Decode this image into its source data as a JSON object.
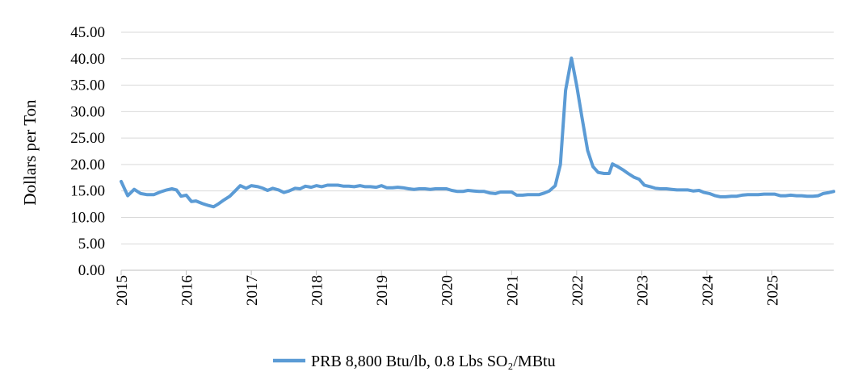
{
  "chart_data": {
    "type": "line",
    "title": "",
    "xlabel": "",
    "ylabel": "Dollars per Ton",
    "ylim": [
      0,
      45
    ],
    "yticks": [
      "0.00",
      "5.00",
      "10.00",
      "15.00",
      "20.00",
      "25.00",
      "30.00",
      "35.00",
      "40.00",
      "45.00"
    ],
    "xticks": [
      "2015",
      "2016",
      "2017",
      "2018",
      "2019",
      "2020",
      "2021",
      "2022",
      "2023",
      "2024",
      "2025"
    ],
    "xlim": [
      2015.0,
      2025.95
    ],
    "grid": true,
    "legend": "bottom-center",
    "color": "#5b9bd5",
    "series": [
      {
        "name": "PRB 8,800 Btu/lb, 0.8 Lbs SO₂/MBtu",
        "points": [
          [
            2015.0,
            16.8
          ],
          [
            2015.1,
            14.1
          ],
          [
            2015.2,
            15.3
          ],
          [
            2015.3,
            14.5
          ],
          [
            2015.4,
            14.3
          ],
          [
            2015.5,
            14.3
          ],
          [
            2015.6,
            14.8
          ],
          [
            2015.7,
            15.2
          ],
          [
            2015.78,
            15.4
          ],
          [
            2015.85,
            15.2
          ],
          [
            2015.92,
            14.0
          ],
          [
            2016.0,
            14.2
          ],
          [
            2016.08,
            13.0
          ],
          [
            2016.15,
            13.1
          ],
          [
            2016.25,
            12.6
          ],
          [
            2016.33,
            12.3
          ],
          [
            2016.42,
            12.0
          ],
          [
            2016.5,
            12.6
          ],
          [
            2016.58,
            13.3
          ],
          [
            2016.67,
            14.0
          ],
          [
            2016.75,
            15.0
          ],
          [
            2016.83,
            16.0
          ],
          [
            2016.92,
            15.5
          ],
          [
            2017.0,
            16.0
          ],
          [
            2017.1,
            15.8
          ],
          [
            2017.18,
            15.5
          ],
          [
            2017.25,
            15.1
          ],
          [
            2017.33,
            15.5
          ],
          [
            2017.42,
            15.2
          ],
          [
            2017.5,
            14.7
          ],
          [
            2017.58,
            15.0
          ],
          [
            2017.67,
            15.5
          ],
          [
            2017.75,
            15.4
          ],
          [
            2017.83,
            15.9
          ],
          [
            2017.92,
            15.7
          ],
          [
            2018.0,
            16.0
          ],
          [
            2018.08,
            15.8
          ],
          [
            2018.17,
            16.1
          ],
          [
            2018.25,
            16.1
          ],
          [
            2018.33,
            16.1
          ],
          [
            2018.42,
            15.9
          ],
          [
            2018.5,
            15.9
          ],
          [
            2018.58,
            15.8
          ],
          [
            2018.67,
            16.0
          ],
          [
            2018.75,
            15.8
          ],
          [
            2018.83,
            15.8
          ],
          [
            2018.92,
            15.7
          ],
          [
            2019.0,
            16.0
          ],
          [
            2019.08,
            15.6
          ],
          [
            2019.17,
            15.6
          ],
          [
            2019.25,
            15.7
          ],
          [
            2019.33,
            15.6
          ],
          [
            2019.42,
            15.4
          ],
          [
            2019.5,
            15.3
          ],
          [
            2019.58,
            15.4
          ],
          [
            2019.67,
            15.4
          ],
          [
            2019.75,
            15.3
          ],
          [
            2019.83,
            15.4
          ],
          [
            2019.92,
            15.4
          ],
          [
            2020.0,
            15.4
          ],
          [
            2020.08,
            15.1
          ],
          [
            2020.17,
            14.9
          ],
          [
            2020.25,
            14.9
          ],
          [
            2020.33,
            15.1
          ],
          [
            2020.42,
            15.0
          ],
          [
            2020.5,
            14.9
          ],
          [
            2020.58,
            14.9
          ],
          [
            2020.67,
            14.6
          ],
          [
            2020.75,
            14.5
          ],
          [
            2020.83,
            14.8
          ],
          [
            2020.92,
            14.8
          ],
          [
            2021.0,
            14.8
          ],
          [
            2021.08,
            14.2
          ],
          [
            2021.17,
            14.2
          ],
          [
            2021.25,
            14.3
          ],
          [
            2021.33,
            14.3
          ],
          [
            2021.42,
            14.3
          ],
          [
            2021.5,
            14.6
          ],
          [
            2021.58,
            15.0
          ],
          [
            2021.67,
            16.0
          ],
          [
            2021.75,
            20.0
          ],
          [
            2021.83,
            34.0
          ],
          [
            2021.92,
            40.1
          ],
          [
            2022.0,
            35.0
          ],
          [
            2022.08,
            29.0
          ],
          [
            2022.17,
            22.6
          ],
          [
            2022.25,
            19.6
          ],
          [
            2022.33,
            18.5
          ],
          [
            2022.42,
            18.3
          ],
          [
            2022.5,
            18.3
          ],
          [
            2022.55,
            20.1
          ],
          [
            2022.63,
            19.6
          ],
          [
            2022.71,
            19.0
          ],
          [
            2022.79,
            18.3
          ],
          [
            2022.88,
            17.6
          ],
          [
            2022.96,
            17.2
          ],
          [
            2023.04,
            16.1
          ],
          [
            2023.13,
            15.8
          ],
          [
            2023.21,
            15.5
          ],
          [
            2023.29,
            15.4
          ],
          [
            2023.38,
            15.4
          ],
          [
            2023.46,
            15.3
          ],
          [
            2023.54,
            15.2
          ],
          [
            2023.63,
            15.2
          ],
          [
            2023.71,
            15.2
          ],
          [
            2023.79,
            15.0
          ],
          [
            2023.88,
            15.1
          ],
          [
            2023.96,
            14.7
          ],
          [
            2024.04,
            14.5
          ],
          [
            2024.13,
            14.1
          ],
          [
            2024.21,
            13.9
          ],
          [
            2024.29,
            13.9
          ],
          [
            2024.38,
            14.0
          ],
          [
            2024.46,
            14.0
          ],
          [
            2024.54,
            14.2
          ],
          [
            2024.63,
            14.3
          ],
          [
            2024.71,
            14.3
          ],
          [
            2024.79,
            14.3
          ],
          [
            2024.88,
            14.4
          ],
          [
            2024.96,
            14.4
          ],
          [
            2025.04,
            14.4
          ],
          [
            2025.13,
            14.1
          ],
          [
            2025.21,
            14.1
          ],
          [
            2025.29,
            14.2
          ],
          [
            2025.38,
            14.1
          ],
          [
            2025.46,
            14.1
          ],
          [
            2025.54,
            14.0
          ],
          [
            2025.63,
            14.0
          ],
          [
            2025.71,
            14.1
          ],
          [
            2025.79,
            14.5
          ],
          [
            2025.88,
            14.7
          ],
          [
            2025.95,
            14.9
          ]
        ]
      }
    ]
  }
}
